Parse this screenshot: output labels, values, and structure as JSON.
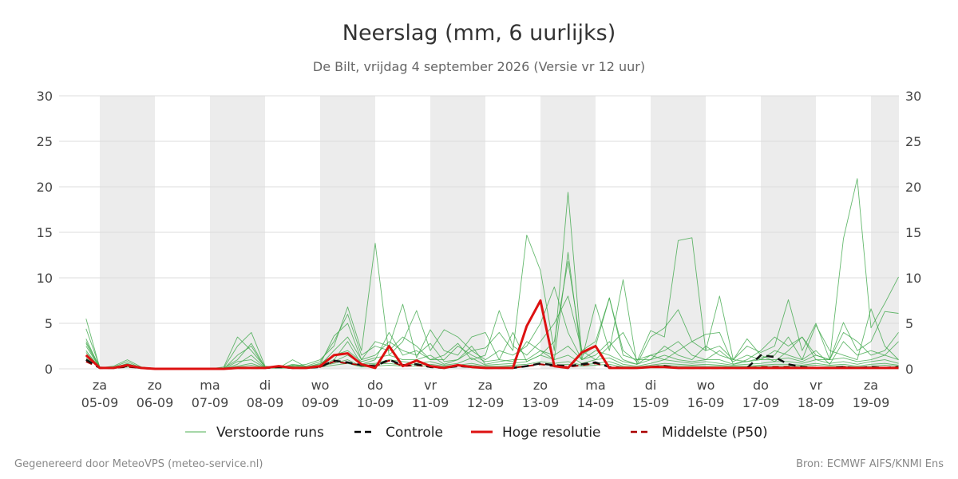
{
  "header": {
    "title": "Neerslag (mm, 6 uurlijks)",
    "subtitle": "De Bilt, vrijdag  4 september 2026 (Versie vr 12 uur)"
  },
  "footer": {
    "left": "Gegenereerd door MeteoVPS (meteo-service.nl)",
    "right": "Bron: ECMWF AIFS/KNMI Ens"
  },
  "legend": [
    {
      "label": "Verstoorde runs",
      "color": "#4caf50",
      "style": "thin-solid"
    },
    {
      "label": "Controle",
      "color": "#000000",
      "style": "dashed"
    },
    {
      "label": "Hoge resolutie",
      "color": "#dd1111",
      "style": "thick-solid"
    },
    {
      "label": "Middelste (P50)",
      "color": "#aa0000",
      "style": "dashed"
    }
  ],
  "colors": {
    "ensemble": "#3ea84a",
    "control": "#111111",
    "hires": "#dd1111",
    "median": "#aa0000",
    "weekend_band": "#ececec",
    "grid": "#dddddd"
  },
  "chart_data": {
    "type": "line",
    "ylim": [
      0,
      30
    ],
    "yticks": [
      0,
      5,
      10,
      15,
      20,
      25,
      30
    ],
    "y_axes": "left and right",
    "grid": true,
    "legend_position": "bottom",
    "x_unit": "days from 04-09 00h",
    "xlim": [
      0.75,
      15.5
    ],
    "day_labels": [
      {
        "day": "za",
        "date": "05-09"
      },
      {
        "day": "zo",
        "date": "06-09"
      },
      {
        "day": "ma",
        "date": "07-09"
      },
      {
        "day": "di",
        "date": "08-09"
      },
      {
        "day": "wo",
        "date": "09-09"
      },
      {
        "day": "do",
        "date": "10-09"
      },
      {
        "day": "vr",
        "date": "11-09"
      },
      {
        "day": "za",
        "date": "12-09"
      },
      {
        "day": "zo",
        "date": "13-09"
      },
      {
        "day": "ma",
        "date": "14-09"
      },
      {
        "day": "di",
        "date": "15-09"
      },
      {
        "day": "wo",
        "date": "16-09"
      },
      {
        "day": "do",
        "date": "17-09"
      },
      {
        "day": "vr",
        "date": "18-09"
      },
      {
        "day": "za",
        "date": "19-09"
      }
    ],
    "shaded_days": [
      1,
      3,
      5,
      7,
      9,
      11,
      13,
      15
    ],
    "x_start": 0.75,
    "x_step": 0.25,
    "series": [
      {
        "name": "Hoge resolutie",
        "role": "hires",
        "values": [
          1.5,
          0.1,
          0.1,
          0.4,
          0.1,
          0,
          0,
          0,
          0,
          0,
          0,
          0.1,
          0.1,
          0.1,
          0.3,
          0.1,
          0.1,
          0.3,
          1.5,
          1.7,
          0.5,
          0.1,
          2.5,
          0.3,
          0.9,
          0.3,
          0.1,
          0.4,
          0.2,
          0.1,
          0.1,
          0.1,
          4.7,
          7.5,
          0.3,
          0.1,
          1.8,
          2.5,
          0.1,
          0.1,
          0.1,
          0.2,
          0.2,
          0.1,
          0.1,
          0.1,
          0.1,
          0.1,
          0.1,
          0.1,
          0.1,
          0.1,
          0.1,
          0.1,
          0.1,
          0.1,
          0.1,
          0.1,
          0.1,
          0.1
        ]
      },
      {
        "name": "Controle",
        "role": "control",
        "values": [
          1.0,
          0.1,
          0.1,
          0.3,
          0.1,
          0,
          0,
          0,
          0,
          0,
          0,
          0.1,
          0.1,
          0.1,
          0.2,
          0.1,
          0.1,
          0.2,
          0.9,
          0.7,
          0.4,
          0.3,
          1.0,
          0.4,
          0.5,
          0.2,
          0.1,
          0.3,
          0.2,
          0.1,
          0.1,
          0.1,
          0.3,
          0.6,
          0.4,
          0.3,
          0.5,
          0.7,
          0.2,
          0.1,
          0.1,
          0.2,
          0.3,
          0.1,
          0.1,
          0.1,
          0.1,
          0.1,
          0.1,
          1.5,
          1.3,
          0.5,
          0.2,
          0.1,
          0.1,
          0.2,
          0.1,
          0.2,
          0.1,
          0.2,
          0.1,
          0.2,
          0.1,
          0.5,
          0.2,
          0.1,
          0.1,
          0.1,
          0.1,
          0.1,
          0.1
        ]
      },
      {
        "name": "Middelste (P50)",
        "role": "median",
        "values": [
          0.8,
          0.1,
          0.1,
          0.2,
          0.1,
          0,
          0,
          0,
          0,
          0,
          0,
          0.1,
          0.1,
          0.1,
          0.2,
          0.1,
          0.1,
          0.2,
          0.8,
          0.6,
          0.4,
          0.3,
          0.9,
          0.3,
          0.4,
          0.2,
          0.1,
          0.3,
          0.2,
          0.1,
          0.1,
          0.1,
          0.3,
          0.5,
          0.3,
          0.2,
          0.4,
          0.6,
          0.2,
          0.1,
          0.1,
          0.2,
          0.2,
          0.1,
          0.1,
          0.1,
          0.1,
          0.1,
          0.1,
          0.2,
          0.2,
          0.2,
          0.1,
          0.1,
          0.1,
          0.2,
          0.1,
          0.1,
          0.1,
          0.2,
          0.1,
          0.2,
          0.1,
          0.2,
          0.1,
          0.1,
          0.1,
          0.1,
          0.1,
          0.1,
          0.1
        ]
      },
      {
        "name": "Verstoorde runs",
        "role": "ensemble",
        "values": [
          5.5,
          0.1,
          0.3,
          1.0,
          0.2,
          0,
          0,
          0,
          0,
          0,
          0.1,
          2.5,
          4.0,
          0.3,
          0.1,
          0.3,
          0.5,
          1.0,
          2.5,
          6.8,
          2.0,
          13.8,
          1.5,
          3.0,
          6.4,
          2.0,
          4.3,
          3.5,
          2.0,
          2.3,
          4.0,
          2.0,
          14.7,
          10.8,
          2.0,
          19.4,
          1.5,
          2.5,
          7.8,
          2.0,
          0.8,
          4.2,
          3.5,
          14.1,
          14.4,
          2.0,
          8.0,
          1.0,
          2.5,
          1.8,
          2.5,
          7.6,
          2.0,
          5.0,
          1.0,
          14.3,
          20.9,
          4.5,
          7.2,
          10.1,
          3.0,
          5.0,
          9.1,
          3.0,
          4.8,
          7.6,
          3.0,
          7.0,
          9.2,
          7.5,
          4.0,
          10.0,
          8.0,
          12.6,
          6.6
        ]
      },
      {
        "name": "Verstoorde runs",
        "role": "ensemble",
        "values": [
          4.4,
          0.2,
          0.1,
          0.6,
          0.1,
          0,
          0,
          0,
          0,
          0,
          0.2,
          3.5,
          2.0,
          0.2,
          0.1,
          1.0,
          0.2,
          0.5,
          3.6,
          5.0,
          1.0,
          3.0,
          2.5,
          7.1,
          1.2,
          4.3,
          2.0,
          1.5,
          3.5,
          4.0,
          1.0,
          0.8,
          3.0,
          2.0,
          1.0,
          12.8,
          1.0,
          7.1,
          2.0,
          9.8,
          0.5,
          3.5,
          4.5,
          6.5,
          3.0,
          2.0,
          2.5,
          1.0,
          3.3,
          1.5,
          0.8,
          2.0,
          3.5,
          1.0,
          1.0,
          5.1,
          2.0,
          3.0,
          6.3,
          6.1,
          2.5,
          1.5,
          5.8,
          2.0,
          3.0,
          2.0,
          1.0,
          4.4,
          5.4,
          3.0,
          2.0,
          5.0,
          2.0,
          1.5,
          3.0
        ]
      },
      {
        "name": "Verstoorde runs",
        "role": "ensemble",
        "values": [
          3.3,
          0.1,
          0.2,
          0.8,
          0.1,
          0,
          0,
          0,
          0,
          0,
          0,
          1.5,
          2.5,
          0.1,
          0.1,
          0.5,
          0.3,
          0.8,
          3.0,
          6.0,
          1.5,
          2.5,
          2.0,
          3.5,
          2.5,
          1.0,
          1.5,
          2.8,
          1.0,
          1.5,
          6.4,
          2.5,
          1.5,
          3.0,
          5.0,
          8.0,
          2.0,
          3.0,
          7.8,
          1.5,
          1.0,
          1.5,
          2.0,
          3.0,
          1.5,
          1.0,
          2.0,
          0.8,
          1.5,
          1.0,
          2.0,
          1.5,
          1.0,
          2.0,
          0.5,
          3.0,
          1.5,
          2.0,
          1.5,
          3.0,
          1.0,
          2.0,
          2.5,
          1.0,
          2.0,
          1.5,
          1.0,
          2.0,
          2.5,
          1.0,
          2.0,
          3.0,
          1.5,
          2.0,
          1.0
        ]
      },
      {
        "name": "Verstoorde runs",
        "role": "ensemble",
        "values": [
          2.8,
          0.1,
          0.1,
          0.4,
          0.1,
          0,
          0,
          0,
          0,
          0,
          0,
          0.8,
          1.0,
          0.1,
          0.1,
          0.2,
          0.1,
          0.4,
          2.0,
          3.5,
          1.0,
          1.5,
          3.0,
          2.0,
          1.5,
          2.8,
          0.8,
          1.0,
          2.0,
          1.0,
          2.0,
          1.5,
          2.5,
          5.0,
          9.0,
          4.0,
          1.0,
          1.5,
          3.0,
          1.0,
          0.5,
          1.5,
          1.0,
          2.0,
          3.0,
          3.8,
          4.0,
          0.5,
          1.0,
          2.0,
          3.5,
          2.5,
          3.5,
          1.5,
          1.0,
          4.0,
          3.0,
          1.5,
          2.0,
          4.0,
          3.0,
          1.0,
          2.0,
          5.0,
          1.5,
          1.0,
          2.0,
          1.5,
          1.0,
          2.0,
          1.0,
          1.5,
          4.0,
          2.0,
          2.5
        ]
      },
      {
        "name": "Verstoorde runs",
        "role": "ensemble",
        "values": [
          3.0,
          0.2,
          0.1,
          0.5,
          0.2,
          0,
          0,
          0,
          0,
          0,
          0.1,
          1.0,
          2.8,
          0.2,
          0.1,
          0.3,
          0.2,
          0.3,
          1.0,
          3.0,
          0.5,
          1.0,
          4.0,
          1.5,
          2.0,
          1.0,
          1.0,
          2.5,
          1.5,
          0.8,
          1.0,
          4.0,
          0.8,
          1.5,
          3.0,
          11.8,
          2.0,
          1.0,
          2.5,
          4.0,
          1.0,
          1.0,
          2.5,
          1.5,
          1.0,
          2.5,
          1.5,
          1.0,
          0.8,
          1.2,
          1.5,
          3.5,
          1.0,
          4.8,
          2.0,
          1.5,
          1.0,
          6.6,
          2.5,
          1.0,
          1.5,
          3.0,
          1.0,
          2.0,
          7.6,
          1.5,
          1.0,
          1.5,
          2.0,
          1.0,
          1.5,
          2.0,
          1.0,
          4.5,
          1.5
        ]
      },
      {
        "name": "Verstoorde runs",
        "role": "ensemble",
        "values": [
          2.0,
          0.1,
          0.1,
          0.3,
          0.1,
          0,
          0,
          0,
          0,
          0,
          0,
          0.5,
          1.5,
          0.1,
          0.1,
          0.4,
          0.2,
          0.6,
          1.5,
          2.0,
          0.8,
          1.2,
          1.5,
          1.0,
          1.0,
          1.5,
          0.5,
          1.0,
          2.5,
          0.5,
          0.8,
          1.0,
          1.0,
          2.0,
          1.5,
          2.5,
          1.0,
          2.0,
          1.5,
          0.8,
          0.5,
          1.0,
          1.5,
          1.0,
          0.8,
          1.0,
          1.0,
          0.5,
          0.8,
          1.0,
          1.0,
          1.2,
          0.8,
          1.5,
          1.0,
          1.2,
          0.8,
          1.0,
          1.5,
          1.0,
          1.0,
          1.5,
          1.2,
          1.0,
          0.8,
          1.0,
          1.2,
          1.5,
          1.0,
          1.0,
          1.2,
          1.0,
          0.8,
          1.0,
          1.0
        ]
      },
      {
        "name": "Verstoorde runs",
        "role": "ensemble",
        "values": [
          1.8,
          0.1,
          0.2,
          0.5,
          0.1,
          0,
          0,
          0,
          0,
          0,
          0,
          0.3,
          0.6,
          0.1,
          0.1,
          0.2,
          0.1,
          0.2,
          0.8,
          1.5,
          0.5,
          0.6,
          1.0,
          0.8,
          0.6,
          0.8,
          0.4,
          0.6,
          1.2,
          0.4,
          0.5,
          0.6,
          0.8,
          1.5,
          1.0,
          1.5,
          0.6,
          1.0,
          1.2,
          0.5,
          0.3,
          0.6,
          1.0,
          0.8,
          0.6,
          0.8,
          0.6,
          0.4,
          0.5,
          0.6,
          0.8,
          0.8,
          0.6,
          1.0,
          0.6,
          0.8,
          0.5,
          0.8,
          1.0,
          0.6,
          0.8,
          1.0,
          0.8,
          0.6,
          0.5,
          0.8,
          1.0,
          0.8,
          0.6,
          0.8,
          1.0,
          0.6,
          0.5,
          0.8,
          0.6
        ]
      },
      {
        "name": "Verstoorde runs",
        "role": "ensemble",
        "values": [
          2.5,
          0.1,
          0.1,
          0.3,
          0.1,
          0,
          0,
          0,
          0,
          0,
          0,
          0.2,
          0.4,
          0.1,
          0.1,
          0.1,
          0.1,
          0.3,
          0.6,
          1.0,
          0.3,
          0.5,
          0.6,
          0.4,
          0.5,
          0.5,
          0.3,
          0.4,
          0.6,
          0.3,
          0.3,
          0.4,
          0.5,
          0.8,
          0.6,
          0.8,
          0.4,
          0.6,
          0.8,
          0.3,
          0.2,
          0.4,
          0.6,
          0.5,
          0.4,
          0.5,
          0.4,
          0.3,
          0.3,
          0.4,
          0.5,
          0.5,
          0.4,
          0.6,
          0.4,
          0.5,
          0.3,
          0.5,
          0.6,
          0.4,
          0.5,
          0.6,
          0.5,
          0.4,
          0.3,
          0.5,
          0.6,
          0.5,
          0.4,
          0.5,
          0.6,
          0.4,
          0.3,
          0.5,
          0.4
        ]
      },
      {
        "name": "Verstoorde runs",
        "role": "ensemble",
        "values": [
          1.2,
          0.1,
          0.1,
          0.2,
          0.1,
          0,
          0,
          0,
          0,
          0,
          0,
          0.1,
          0.2,
          0.1,
          0.1,
          0.1,
          0.1,
          0.2,
          0.4,
          0.6,
          0.2,
          0.3,
          0.4,
          0.3,
          0.3,
          0.3,
          0.2,
          0.3,
          0.4,
          0.2,
          0.2,
          0.3,
          0.3,
          0.5,
          0.4,
          0.5,
          0.3,
          0.4,
          0.5,
          0.2,
          0.1,
          0.3,
          0.4,
          0.3,
          0.3,
          0.3,
          0.3,
          0.2,
          0.2,
          0.3,
          0.3,
          0.3,
          0.3,
          0.4,
          0.3,
          0.3,
          0.2,
          0.3,
          0.4,
          0.3,
          0.3,
          0.4,
          0.3,
          0.3,
          0.2,
          0.3,
          0.4,
          0.3,
          0.3,
          0.3,
          0.4,
          0.3,
          0.2,
          0.3,
          0.3
        ]
      }
    ]
  }
}
